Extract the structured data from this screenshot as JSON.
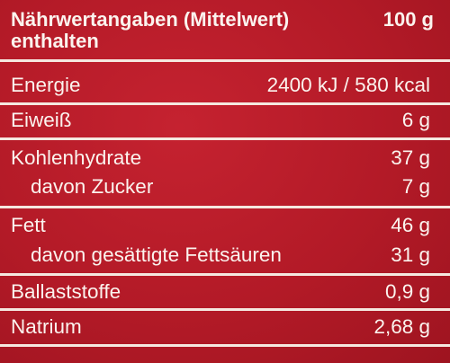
{
  "header": {
    "title": "Nährwertangaben (Mittelwert)",
    "per": "100 g",
    "subtitle": "enthalten"
  },
  "rows": [
    {
      "label": "Energie",
      "value": "2400 kJ / 580 kcal"
    },
    {
      "label": "Eiweiß",
      "value": "6 g"
    },
    {
      "label": "Kohlenhydrate",
      "value": "37 g"
    },
    {
      "label": "davon Zucker",
      "value": "7 g"
    },
    {
      "label": "Fett",
      "value": "46 g"
    },
    {
      "label": "davon gesättigte Fettsäuren",
      "value": "31 g"
    },
    {
      "label": "Ballaststoffe",
      "value": "0,9 g"
    },
    {
      "label": "Natrium",
      "value": "2,68 g"
    }
  ],
  "colors": {
    "background": "#b81a28",
    "text": "#fbf3ee",
    "rules": "#f5e8e0"
  }
}
